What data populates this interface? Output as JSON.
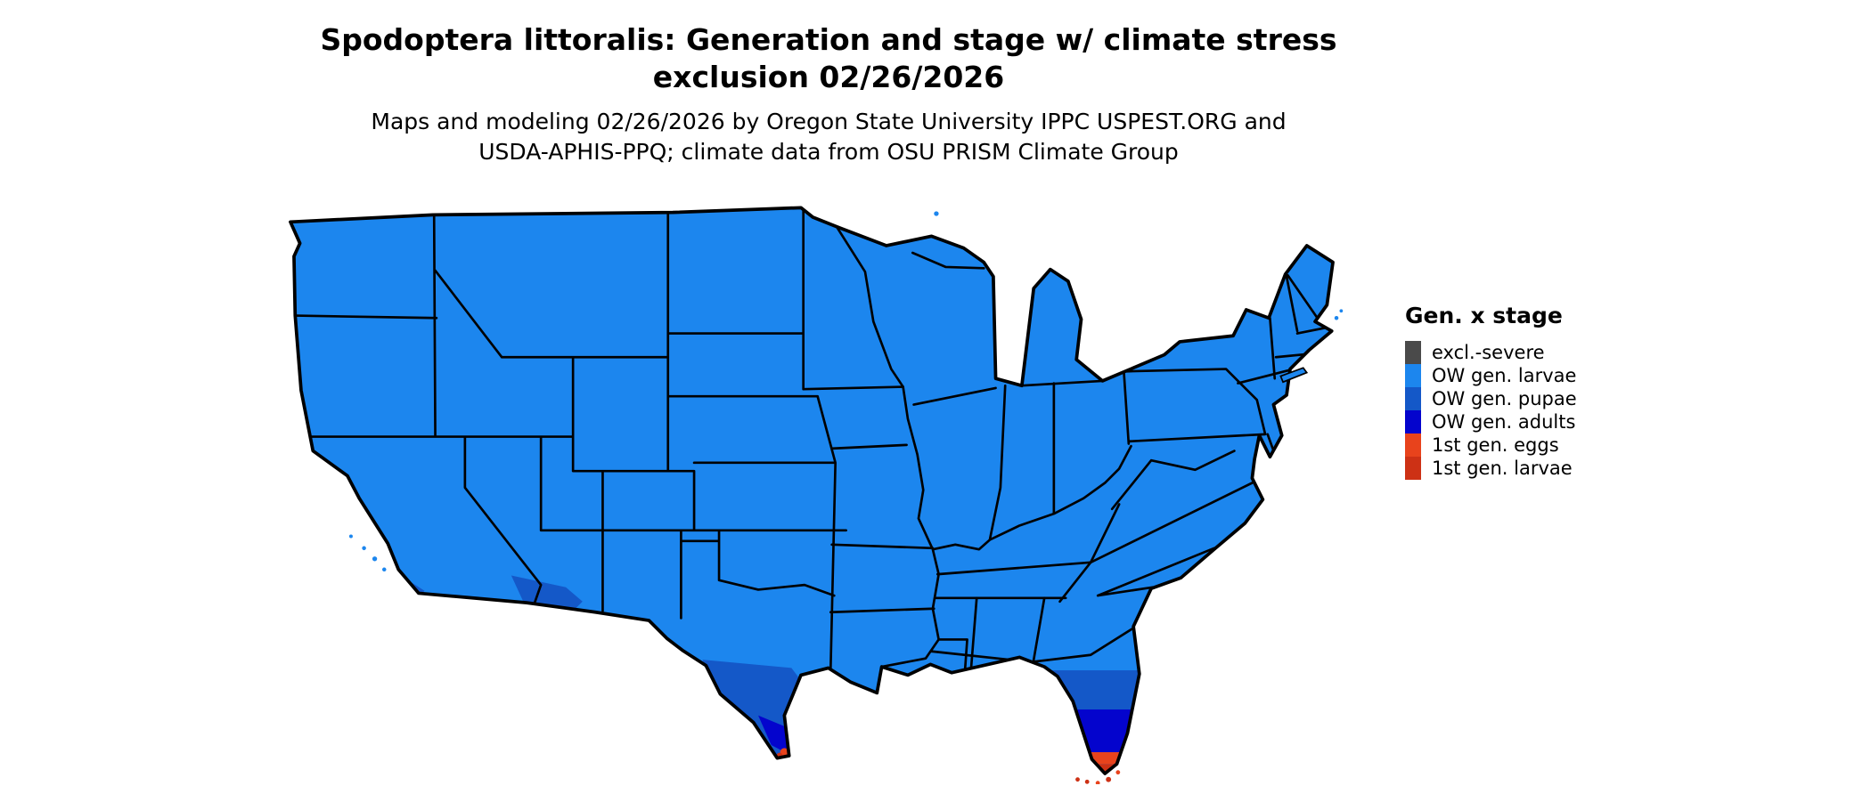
{
  "figure": {
    "title_line1": "Spodoptera littoralis: Generation and stage w/ climate stress",
    "title_line2": "exclusion 02/26/2026",
    "subtitle_line1": "Maps and modeling 02/26/2026 by Oregon State University IPPC USPEST.ORG and",
    "subtitle_line2": "USDA-APHIS-PPQ; climate data from OSU PRISM Climate Group"
  },
  "legend": {
    "title": "Gen. x stage",
    "items": [
      {
        "label": "excl.-severe",
        "color": "#4a4a4a"
      },
      {
        "label": "OW gen. larvae",
        "color": "#1c86ee"
      },
      {
        "label": "OW gen. pupae",
        "color": "#1458c8"
      },
      {
        "label": "OW gen. adults",
        "color": "#0404cd"
      },
      {
        "label": "1st gen. eggs",
        "color": "#e8431c"
      },
      {
        "label": "1st gen. larvae",
        "color": "#cd3115"
      }
    ]
  },
  "map": {
    "region": "Continental United States",
    "date": "02/26/2026",
    "colors": {
      "excl_severe": "#4a4a4a",
      "ow_larvae": "#1c86ee",
      "ow_pupae": "#1458c8",
      "ow_adults": "#0404cd",
      "first_eggs": "#e8431c",
      "first_larvae": "#cd3115",
      "border": "#000000",
      "background": "#ffffff"
    },
    "stage_regions": [
      {
        "area": "Most of the continental US",
        "stage": "OW gen. larvae"
      },
      {
        "area": "Southern Texas (Rio Grande Valley and coast)",
        "stage": "OW gen. pupae"
      },
      {
        "area": "Southernmost Texas tip",
        "stage": "OW gen. adults / 1st gen. eggs / 1st gen. larvae"
      },
      {
        "area": "Central Florida peninsula",
        "stage": "OW gen. pupae"
      },
      {
        "area": "Southern Florida",
        "stage": "OW gen. adults"
      },
      {
        "area": "Florida tip and Keys",
        "stage": "1st gen. eggs / 1st gen. larvae"
      },
      {
        "area": "Southwestern Arizona border",
        "stage": "OW gen. pupae"
      },
      {
        "area": "Southern California coast and islands",
        "stage": "OW gen. pupae / OW gen. larvae"
      }
    ]
  }
}
